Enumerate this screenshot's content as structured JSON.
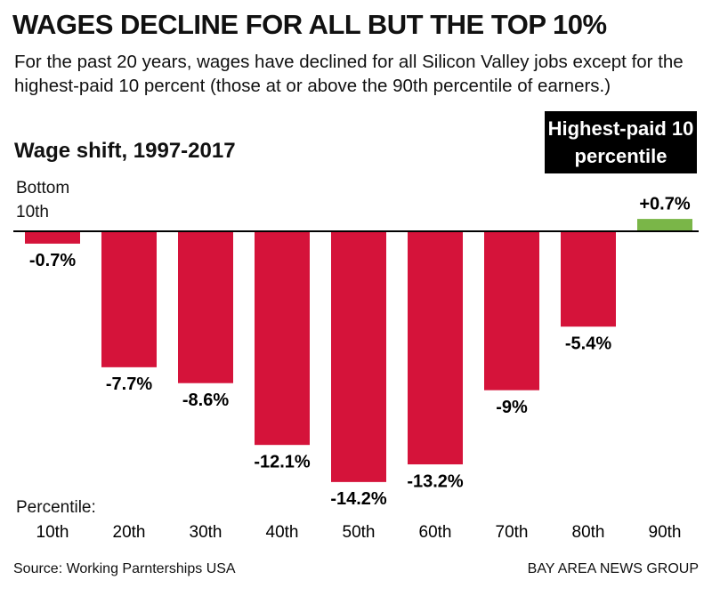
{
  "chart_data": {
    "type": "bar",
    "title": "WAGES DECLINE FOR ALL BUT THE TOP 10%",
    "subtitle": "For the past 20 years, wages have declined for all Silicon Valley jobs except for the highest-paid 10 percent (those at or above the 90th percentile of earners.)",
    "chart_title": "Wage shift, 1997-2017",
    "annotations": [
      "Bottom 10th",
      "Highest-paid 10 percentile"
    ],
    "x_label": "Percentile:",
    "categories": [
      "10th",
      "20th",
      "30th",
      "40th",
      "50th",
      "60th",
      "70th",
      "80th",
      "90th"
    ],
    "values": [
      -0.7,
      -7.7,
      -8.6,
      -12.1,
      -14.2,
      -13.2,
      -9,
      -5.4,
      0.7
    ],
    "value_labels": [
      "-0.7%",
      "-7.7%",
      "-8.6%",
      "-12.1%",
      "-14.2%",
      "-13.2%",
      "-9%",
      "-5.4%",
      "+0.7%"
    ],
    "colors": [
      "#d5133a",
      "#d5133a",
      "#d5133a",
      "#d5133a",
      "#d5133a",
      "#d5133a",
      "#d5133a",
      "#d5133a",
      "#7ab648"
    ],
    "source": "Source: Working Parnterships USA",
    "credit": "BAY AREA NEWS GROUP"
  }
}
